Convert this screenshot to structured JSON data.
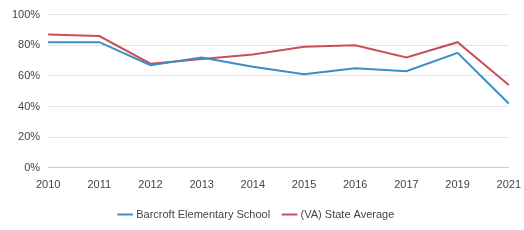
{
  "chart_data": {
    "type": "line",
    "categories": [
      "2010",
      "2011",
      "2012",
      "2013",
      "2014",
      "2015",
      "2016",
      "2017",
      "2019",
      "2021"
    ],
    "series": [
      {
        "name": "Barcroft Elementary School",
        "color": "#3a8ec4",
        "values": [
          82,
          82,
          67,
          72,
          66,
          61,
          65,
          63,
          75,
          42
        ]
      },
      {
        "name": "(VA) State Average",
        "color": "#c8505a",
        "values": [
          87,
          86,
          68,
          71,
          74,
          79,
          80,
          72,
          82,
          54
        ]
      }
    ],
    "ylim": [
      0,
      100
    ],
    "yticks": [
      {
        "value": 0,
        "label": "0%"
      },
      {
        "value": 20,
        "label": "20%"
      },
      {
        "value": 40,
        "label": "40%"
      },
      {
        "value": 60,
        "label": "60%"
      },
      {
        "value": 80,
        "label": "80%"
      },
      {
        "value": 100,
        "label": "100%"
      }
    ],
    "grid": true,
    "legend": "bottom"
  }
}
